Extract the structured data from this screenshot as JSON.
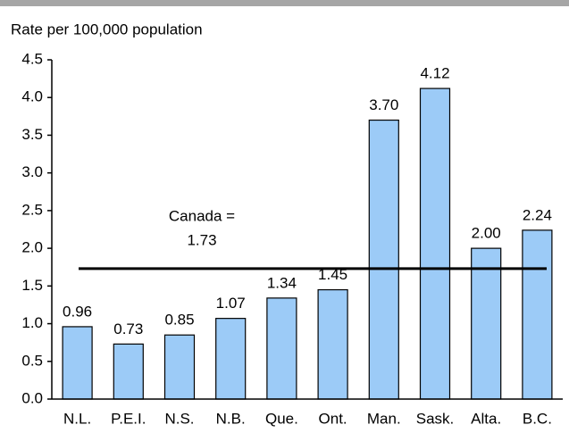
{
  "chart_data": {
    "type": "bar",
    "y_axis_label": "Rate per 100,000 population",
    "categories": [
      "N.L.",
      "P.E.I.",
      "N.S.",
      "N.B.",
      "Que.",
      "Ont.",
      "Man.",
      "Sask.",
      "Alta.",
      "B.C."
    ],
    "values": [
      0.96,
      0.73,
      0.85,
      1.07,
      1.34,
      1.45,
      3.7,
      4.12,
      2.0,
      2.24
    ],
    "value_labels": [
      "0.96",
      "0.73",
      "0.85",
      "1.07",
      "1.34",
      "1.45",
      "3.70",
      "4.12",
      "2.00",
      "2.24"
    ],
    "color": "#9ccbf7",
    "ylim": [
      0,
      4.5
    ],
    "yticks": [
      {
        "value": 0,
        "label": "0.0"
      },
      0.5,
      {
        "value": 1,
        "label": "1.0"
      },
      1.5,
      {
        "value": 2,
        "label": "2.0"
      },
      2.5,
      {
        "value": 3,
        "label": "3.0"
      },
      3.5,
      {
        "value": 4,
        "label": "4.0"
      },
      4.5
    ],
    "reference": {
      "label": "Canada =",
      "value": 1.73
    }
  }
}
